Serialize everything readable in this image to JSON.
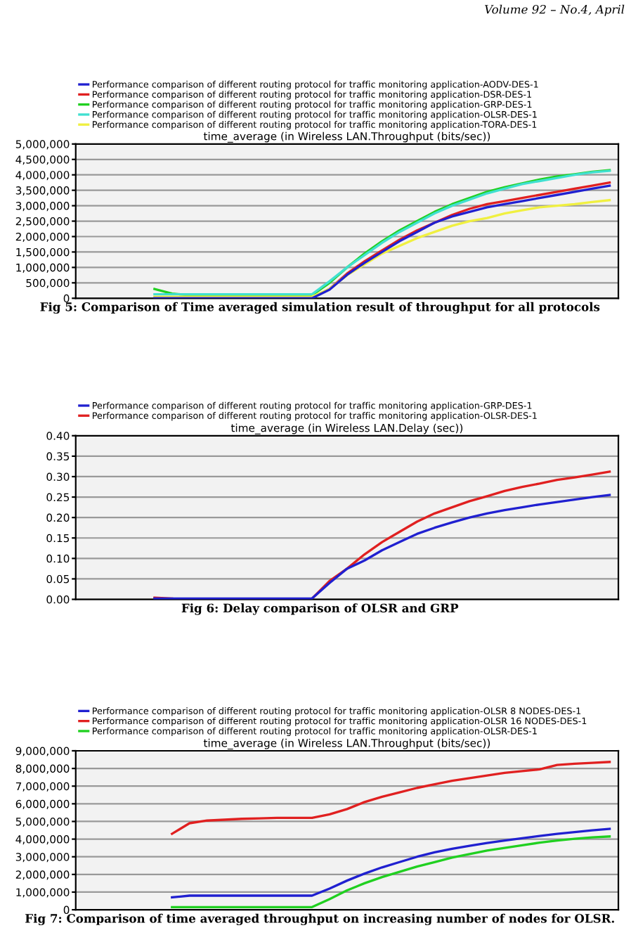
{
  "chart_data": [
    {
      "type": "line",
      "title": "time_average (in Wireless LAN.Throughput (bits/sec))",
      "categories": [
        null,
        null,
        null,
        null,
        null,
        null,
        null,
        null,
        null,
        null,
        null,
        null,
        null,
        null,
        null,
        null,
        null,
        null,
        null,
        null,
        null,
        null,
        null,
        null,
        null,
        null,
        null,
        null,
        null,
        null,
        null
      ],
      "series": [
        {
          "name": "Performance comparison of different routing protocol for traffic monitoring application-AODV-DES-1",
          "color": "#2020d0",
          "values": [
            null,
            null,
            null,
            null,
            0,
            0,
            0,
            0,
            0,
            0,
            0,
            0,
            0,
            0,
            280000,
            760000,
            1150000,
            1500000,
            1850000,
            2150000,
            2450000,
            2650000,
            2800000,
            2950000,
            3050000,
            3150000,
            3250000,
            3350000,
            3450000,
            3550000,
            3650000
          ]
        },
        {
          "name": "Performance comparison of different routing protocol for traffic monitoring application-DSR-DES-1",
          "color": "#e02020",
          "values": [
            null,
            null,
            null,
            null,
            null,
            null,
            null,
            null,
            null,
            null,
            null,
            null,
            null,
            20000,
            300000,
            800000,
            1200000,
            1550000,
            1900000,
            2200000,
            2450000,
            2700000,
            2900000,
            3050000,
            3150000,
            3250000,
            3350000,
            3450000,
            3550000,
            3650000,
            3750000
          ]
        },
        {
          "name": "Performance comparison of different routing protocol for traffic monitoring application-GRP-DES-1",
          "color": "#20d020",
          "values": [
            null,
            null,
            null,
            null,
            300000,
            150000,
            100000,
            100000,
            100000,
            100000,
            100000,
            100000,
            100000,
            100000,
            500000,
            1000000,
            1450000,
            1850000,
            2200000,
            2500000,
            2800000,
            3050000,
            3250000,
            3450000,
            3600000,
            3720000,
            3850000,
            3950000,
            4020000,
            4100000,
            4150000
          ]
        },
        {
          "name": "Performance comparison of different routing protocol for traffic monitoring application-OLSR-DES-1",
          "color": "#40e0d0",
          "values": [
            null,
            null,
            null,
            null,
            130000,
            130000,
            130000,
            130000,
            130000,
            130000,
            130000,
            130000,
            130000,
            130000,
            550000,
            1000000,
            1400000,
            1800000,
            2150000,
            2450000,
            2750000,
            3000000,
            3200000,
            3400000,
            3550000,
            3700000,
            3800000,
            3900000,
            4000000,
            4080000,
            4130000
          ]
        },
        {
          "name": "Performance comparison of different routing protocol for traffic monitoring application-TORA-DES-1",
          "color": "#f0f040",
          "values": [
            null,
            null,
            null,
            null,
            50000,
            50000,
            50000,
            50000,
            50000,
            50000,
            50000,
            50000,
            50000,
            50000,
            300000,
            750000,
            1100000,
            1450000,
            1700000,
            1950000,
            2150000,
            2350000,
            2500000,
            2600000,
            2750000,
            2850000,
            2950000,
            3000000,
            3050000,
            3120000,
            3180000
          ]
        }
      ],
      "ylim": [
        0,
        5000000
      ],
      "yticks": [
        {
          "value": 0,
          "label": "0"
        },
        {
          "value": 500000,
          "label": "500,000"
        },
        {
          "value": 1000000,
          "label": "1,000,000"
        },
        {
          "value": 1500000,
          "label": "1,500,000"
        },
        {
          "value": 2000000,
          "label": "2,000,000"
        },
        {
          "value": 2500000,
          "label": "2,500,000"
        },
        {
          "value": 3000000,
          "label": "3,000,000"
        },
        {
          "value": 3500000,
          "label": "3,500,000"
        },
        {
          "value": 4000000,
          "label": "4,000,000"
        },
        {
          "value": 4500000,
          "label": "4,500,000"
        },
        {
          "value": 5000000,
          "label": "5,000,000"
        }
      ],
      "grid": "y",
      "legend": "top",
      "tick_labels": "y",
      "annotations": [
        "Volume 92 – No.4, April",
        "Fig 5: Comparison of Time averaged simulation result of throughput for all protocols"
      ]
    },
    {
      "type": "line",
      "title": "time_average (in Wireless LAN.Delay (sec))",
      "categories": [
        null,
        null,
        null,
        null,
        null,
        null,
        null,
        null,
        null,
        null,
        null,
        null,
        null,
        null,
        null,
        null,
        null,
        null,
        null,
        null,
        null,
        null,
        null,
        null,
        null,
        null,
        null,
        null,
        null,
        null,
        null
      ],
      "series": [
        {
          "name": "Performance comparison of different routing protocol for traffic monitoring application-GRP-DES-1",
          "color": "#2020d0",
          "values": [
            null,
            null,
            null,
            null,
            0.002,
            0.002,
            0.002,
            0.002,
            0.002,
            0.002,
            0.002,
            0.002,
            0.002,
            0.002,
            0.04,
            0.075,
            0.095,
            0.12,
            0.14,
            0.16,
            0.175,
            0.188,
            0.2,
            0.21,
            0.218,
            0.225,
            0.232,
            0.238,
            0.244,
            0.25,
            0.255
          ]
        },
        {
          "name": "Performance comparison of different routing protocol for traffic monitoring application-OLSR-DES-1",
          "color": "#e02020",
          "values": [
            null,
            null,
            null,
            null,
            0.004,
            0.002,
            null,
            null,
            null,
            null,
            null,
            null,
            null,
            0.002,
            0.045,
            0.075,
            0.11,
            0.14,
            0.165,
            0.19,
            0.21,
            0.225,
            0.24,
            0.252,
            0.265,
            0.275,
            0.283,
            0.292,
            0.298,
            0.305,
            0.312
          ]
        }
      ],
      "ylim": [
        0,
        0.4
      ],
      "yticks": [
        {
          "value": 0,
          "label": "0.00"
        },
        {
          "value": 0.05,
          "label": "0.05"
        },
        {
          "value": 0.1,
          "label": "0.10"
        },
        {
          "value": 0.15,
          "label": "0.15"
        },
        {
          "value": 0.2,
          "label": "0.20"
        },
        {
          "value": 0.25,
          "label": "0.25"
        },
        {
          "value": 0.3,
          "label": "0.30"
        },
        {
          "value": 0.35,
          "label": "0.35"
        },
        {
          "value": 0.4,
          "label": "0.40"
        }
      ],
      "grid": "y",
      "legend": "top",
      "tick_labels": "y",
      "annotations": [
        "Fig 6: Delay comparison of OLSR and GRP"
      ]
    },
    {
      "type": "line",
      "title": "time_average (in Wireless LAN.Throughput (bits/sec))",
      "categories": [
        null,
        null,
        null,
        null,
        null,
        null,
        null,
        null,
        null,
        null,
        null,
        null,
        null,
        null,
        null,
        null,
        null,
        null,
        null,
        null,
        null,
        null,
        null,
        null,
        null,
        null,
        null,
        null,
        null,
        null,
        null
      ],
      "series": [
        {
          "name": "Performance comparison of different routing protocol for traffic monitoring application-OLSR 8 NODES-DES-1",
          "color": "#2020d0",
          "values": [
            null,
            null,
            null,
            null,
            null,
            700000,
            800000,
            800000,
            800000,
            800000,
            800000,
            800000,
            800000,
            800000,
            1200000,
            1650000,
            2050000,
            2400000,
            2700000,
            3000000,
            3250000,
            3450000,
            3620000,
            3780000,
            3920000,
            4050000,
            4180000,
            4300000,
            4400000,
            4500000,
            4580000
          ]
        },
        {
          "name": "Performance comparison of different routing protocol for traffic monitoring application-OLSR 16 NODES-DES-1",
          "color": "#e02020",
          "values": [
            null,
            null,
            null,
            null,
            null,
            4300000,
            4900000,
            5050000,
            5100000,
            5150000,
            5170000,
            5200000,
            5200000,
            5200000,
            5400000,
            5700000,
            6100000,
            6400000,
            6650000,
            6900000,
            7100000,
            7300000,
            7450000,
            7600000,
            7750000,
            7850000,
            7950000,
            8200000,
            8270000,
            8320000,
            8370000
          ]
        },
        {
          "name": "Performance comparison of different routing protocol for traffic monitoring application-OLSR-DES-1",
          "color": "#20d020",
          "values": [
            null,
            null,
            null,
            null,
            null,
            150000,
            150000,
            150000,
            150000,
            150000,
            150000,
            150000,
            150000,
            150000,
            600000,
            1100000,
            1500000,
            1850000,
            2150000,
            2450000,
            2700000,
            2950000,
            3150000,
            3350000,
            3500000,
            3650000,
            3800000,
            3920000,
            4020000,
            4100000,
            4150000
          ]
        }
      ],
      "ylim": [
        0,
        9000000
      ],
      "yticks": [
        {
          "value": 0,
          "label": "0"
        },
        {
          "value": 1000000,
          "label": "1,000,000"
        },
        {
          "value": 2000000,
          "label": "2,000,000"
        },
        {
          "value": 3000000,
          "label": "3,000,000"
        },
        {
          "value": 4000000,
          "label": "4,000,000"
        },
        {
          "value": 5000000,
          "label": "5,000,000"
        },
        {
          "value": 6000000,
          "label": "6,000,000"
        },
        {
          "value": 7000000,
          "label": "7,000,000"
        },
        {
          "value": 8000000,
          "label": "8,000,000"
        },
        {
          "value": 9000000,
          "label": "9,000,000"
        }
      ],
      "grid": "y",
      "legend": "top",
      "tick_labels": "y",
      "annotations": [
        "Fig 7: Comparison of time averaged throughput on increasing number of nodes for OLSR."
      ]
    }
  ]
}
